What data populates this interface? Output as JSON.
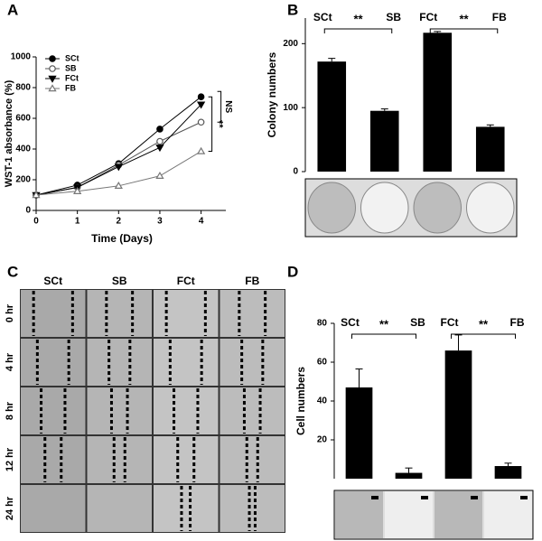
{
  "chart_data": [
    {
      "type": "line",
      "panel": "A",
      "xlabel": "Time (Days)",
      "ylabel": "WST-1 absorbance (%)",
      "x": [
        0,
        1,
        2,
        3,
        4
      ],
      "xlim": [
        0,
        4.6
      ],
      "xticks": [
        0,
        1,
        2,
        3,
        4
      ],
      "ylim": [
        0,
        1000
      ],
      "yticks": [
        0,
        200,
        400,
        600,
        800,
        1000
      ],
      "legend": "upper left",
      "series": [
        {
          "name": "SCt",
          "color": "#000000",
          "marker": "circle",
          "filled": true,
          "values": [
            100,
            165,
            305,
            530,
            740
          ]
        },
        {
          "name": "SB",
          "color": "#555555",
          "marker": "circle",
          "filled": false,
          "values": [
            100,
            150,
            295,
            450,
            575
          ]
        },
        {
          "name": "FCt",
          "color": "#000000",
          "marker": "triangle-down",
          "filled": true,
          "values": [
            100,
            150,
            285,
            410,
            690
          ]
        },
        {
          "name": "FB",
          "color": "#777777",
          "marker": "triangle-up",
          "filled": false,
          "values": [
            100,
            125,
            160,
            225,
            385
          ]
        }
      ],
      "annotations": [
        "**",
        "NS"
      ]
    },
    {
      "type": "bar",
      "panel": "B",
      "ylabel": "Colony numbers",
      "categories": [
        "SCt",
        "SB",
        "FCt",
        "FB"
      ],
      "values": [
        172,
        95,
        217,
        70
      ],
      "errors": [
        5,
        3,
        2,
        3
      ],
      "color": "#000000",
      "ylim": [
        0,
        240
      ],
      "yticks": [
        0,
        100,
        200
      ],
      "annotations": [
        "**",
        "**"
      ]
    },
    {
      "type": "bar",
      "panel": "D",
      "ylabel": "Cell numbers",
      "categories": [
        "SCt",
        "SB",
        "FCt",
        "FB"
      ],
      "values": [
        47,
        3,
        66,
        6.5
      ],
      "errors": [
        9.5,
        2.5,
        8,
        1.5
      ],
      "color": "#000000",
      "ylim": [
        0,
        80
      ],
      "yticks": [
        20,
        40,
        60,
        80
      ],
      "annotations": [
        "**",
        "**"
      ]
    }
  ],
  "wound_healing": {
    "panel": "C",
    "columns": [
      "SCt",
      "SB",
      "FCt",
      "FB"
    ],
    "rows": [
      "0 hr",
      "4 hr",
      "8 hr",
      "12 hr",
      "24 hr"
    ]
  }
}
